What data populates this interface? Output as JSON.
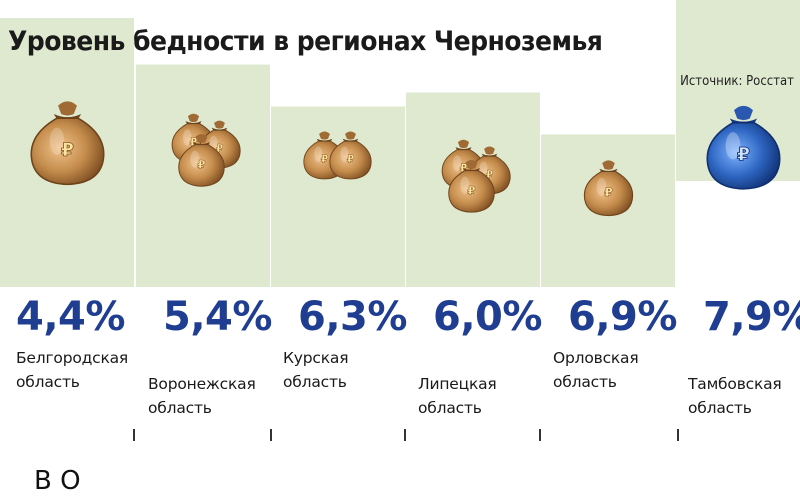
{
  "header": {
    "title": "Уровень бедности в регионах Черноземья",
    "source": "Источник: Росстат"
  },
  "chart_data": {
    "type": "bar",
    "title": "Уровень бедности в регионах Черноземья",
    "categories": [
      [
        "Белгородская",
        "область"
      ],
      [
        "Воронежская",
        "область"
      ],
      [
        "Курская",
        "область"
      ],
      [
        "Липецкая",
        "область"
      ],
      [
        "Орловская",
        "область"
      ],
      [
        "Тамбовская",
        "область"
      ]
    ],
    "values": [
      4.4,
      5.4,
      6.3,
      6.0,
      6.9,
      7.9
    ],
    "value_labels": [
      "4,4%",
      "5,4%",
      "6,3%",
      "6,0%",
      "6,9%",
      "7,9%"
    ],
    "unit": "%",
    "icons": [
      "money-bag-single-large-icon",
      "money-bag-cluster-three-icon",
      "money-bag-pair-icon",
      "money-bag-cluster-three-icon",
      "money-bag-single-small-icon",
      "money-bag-blue-highlight-icon"
    ],
    "colors": {
      "bar": "#dfe9cf",
      "value_text": "#1f3e92",
      "bag": "#c48c4c",
      "bag_dark": "#6e431a",
      "bag_highlight": "#2e66c2"
    }
  },
  "footer": {
    "caption": "В О"
  }
}
